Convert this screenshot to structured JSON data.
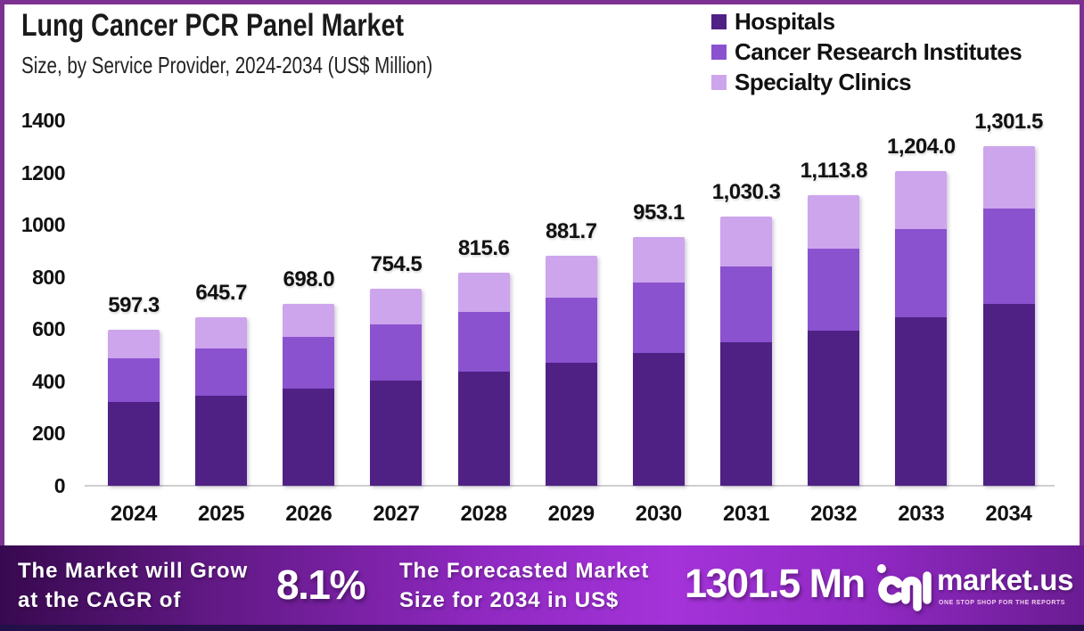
{
  "title": "Lung Cancer PCR Panel Market",
  "subtitle": "Size, by Service Provider, 2024-2034 (US$ Million)",
  "legend": {
    "items": [
      {
        "label": "Hospitals",
        "color": "#4f2185"
      },
      {
        "label": "Cancer Research Institutes",
        "color": "#8a52cf"
      },
      {
        "label": "Specialty Clinics",
        "color": "#cda5ec"
      }
    ]
  },
  "chart_data": {
    "type": "bar",
    "stacked": true,
    "categories": [
      "2024",
      "2025",
      "2026",
      "2027",
      "2028",
      "2029",
      "2030",
      "2031",
      "2032",
      "2033",
      "2034"
    ],
    "series": [
      {
        "name": "Hospitals",
        "color": "#4f2185",
        "values": [
          319.6,
          345.4,
          373.4,
          403.7,
          436.3,
          471.7,
          509.9,
          551.2,
          595.9,
          644.1,
          696.3
        ]
      },
      {
        "name": "Cancer Research Institutes",
        "color": "#8a52cf",
        "values": [
          168.4,
          182.1,
          196.8,
          212.8,
          230.0,
          248.6,
          268.8,
          290.5,
          314.1,
          339.5,
          367.0
        ]
      },
      {
        "name": "Specialty Clinics",
        "color": "#cda5ec",
        "values": [
          109.3,
          118.2,
          127.8,
          138.0,
          149.3,
          161.4,
          174.4,
          188.6,
          203.8,
          220.4,
          238.2
        ]
      }
    ],
    "totals": [
      597.3,
      645.7,
      698.0,
      754.5,
      815.6,
      881.7,
      953.1,
      1030.3,
      1113.8,
      1204.0,
      1301.5
    ],
    "total_labels": [
      "597.3",
      "645.7",
      "698.0",
      "754.5",
      "815.6",
      "881.7",
      "953.1",
      "1,030.3",
      "1,113.8",
      "1,204.0",
      "1,301.5"
    ],
    "title": "Lung Cancer PCR Panel Market",
    "subtitle": "Size, by Service Provider, 2024-2034 (US$ Million)",
    "ylabel": "",
    "xlabel": "",
    "ylim": [
      0,
      1400
    ],
    "yticks": [
      0,
      200,
      400,
      600,
      800,
      1000,
      1200,
      1400
    ],
    "grid": false,
    "legend_position": "top-right"
  },
  "footer": {
    "cagr_label_line1": "The Market will Grow",
    "cagr_label_line2": "at the CAGR of",
    "cagr_value": "8.1%",
    "forecast_label_line1": "The Forecasted Market",
    "forecast_label_line2": "Size for 2034 in US$",
    "forecast_value": "1301.5 Mn",
    "brand": "market.us",
    "tagline": "ONE STOP SHOP FOR THE REPORTS"
  }
}
